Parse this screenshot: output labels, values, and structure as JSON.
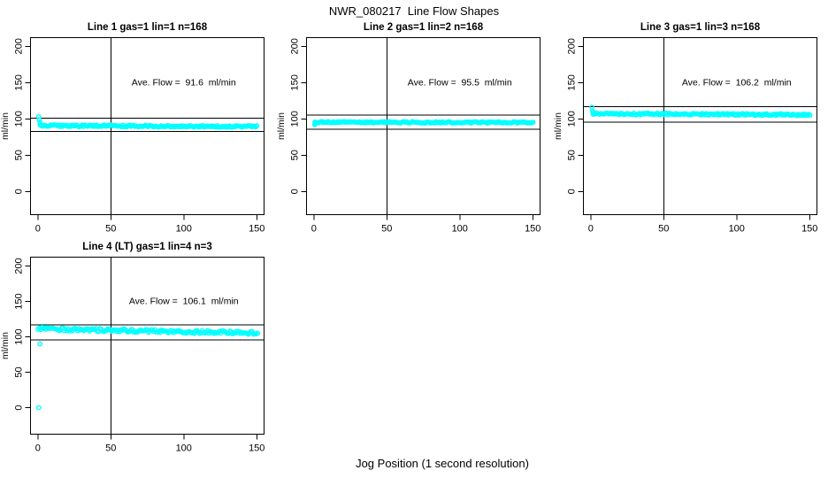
{
  "page": {
    "main_title": "NWR_080217  Line Flow Shapes",
    "x_axis_label": "Jog Position (1 second resolution)",
    "background_color": "#ffffff",
    "point_color": "#00ffff",
    "axis_color": "#000000"
  },
  "chart_data": [
    {
      "type": "scatter",
      "title": "Line 1 gas=1 lin=1 n=168",
      "annotation": "Ave. Flow =  91.6  ml/min",
      "ave_flow_ml_min": 91.6,
      "n_points": 168,
      "ylabel": "ml/min",
      "xticks": [
        0,
        50,
        100,
        150
      ],
      "yticks": [
        0,
        50,
        100,
        150,
        200
      ],
      "xlim": [
        -5,
        155
      ],
      "ylim": [
        -32,
        212
      ],
      "grid": false,
      "legend": null,
      "ref_vline_x": 50,
      "ref_hlines_y": [
        100.76,
        82.44
      ],
      "series": {
        "description": "dense flat band ~90 ml/min from x=2 to 151 after brief drop from ~103",
        "lead_points": [
          [
            0.6,
            103
          ],
          [
            1.0,
            99
          ],
          [
            1.4,
            95.5
          ]
        ],
        "band": {
          "x_start": 1.6,
          "x_end": 151,
          "y_start": 90.7,
          "y_end": 89.4,
          "noise": 1.2,
          "step": 0.9
        }
      }
    },
    {
      "type": "scatter",
      "title": "Line 2 gas=1 lin=2 n=168",
      "annotation": "Ave. Flow =  95.5  ml/min",
      "ave_flow_ml_min": 95.5,
      "n_points": 168,
      "ylabel": "ml/min",
      "xticks": [
        0,
        50,
        100,
        150
      ],
      "yticks": [
        0,
        50,
        100,
        150,
        200
      ],
      "xlim": [
        -5,
        155
      ],
      "ylim": [
        -32,
        212
      ],
      "grid": false,
      "legend": null,
      "ref_vline_x": 50,
      "ref_hlines_y": [
        105.05,
        85.95
      ],
      "series": {
        "description": "very flat dense band ~95 ml/min from x=1 to 151, slight low start",
        "lead_points": [
          [
            0.6,
            92.2
          ],
          [
            1.1,
            93.4
          ]
        ],
        "band": {
          "x_start": 0.8,
          "x_end": 151,
          "y_start": 95.4,
          "y_end": 95.0,
          "noise": 1.0,
          "step": 0.9
        }
      }
    },
    {
      "type": "scatter",
      "title": "Line 3 gas=1 lin=3 n=168",
      "annotation": "Ave. Flow =  106.2  ml/min",
      "ave_flow_ml_min": 106.2,
      "n_points": 168,
      "ylabel": "ml/min",
      "xticks": [
        0,
        50,
        100,
        150
      ],
      "yticks": [
        0,
        50,
        100,
        150,
        200
      ],
      "xlim": [
        -5,
        155
      ],
      "ylim": [
        -32,
        212
      ],
      "grid": false,
      "legend": null,
      "ref_vline_x": 50,
      "ref_hlines_y": [
        116.82,
        95.58
      ],
      "series": {
        "description": "dense band ~106 ml/min from x=2 to 151 after brief start near 116",
        "lead_points": [
          [
            0.8,
            116
          ],
          [
            1.3,
            111
          ],
          [
            1.8,
            109
          ]
        ],
        "band": {
          "x_start": 1.7,
          "x_end": 151,
          "y_start": 107.0,
          "y_end": 105.7,
          "noise": 1.2,
          "step": 0.9
        }
      }
    },
    {
      "type": "scatter",
      "title": "Line 4 (LT) gas=1 lin=4 n=3",
      "annotation": "Ave. Flow =  106.1  ml/min",
      "ave_flow_ml_min": 106.1,
      "n_points": 3,
      "ylabel": "ml/min",
      "xticks": [
        0,
        50,
        100,
        150
      ],
      "yticks": [
        0,
        50,
        100,
        150,
        200
      ],
      "xlim": [
        -5,
        155
      ],
      "ylim": [
        -37.5,
        212.5
      ],
      "grid": false,
      "legend": null,
      "ref_vline_x": 50,
      "ref_hlines_y": [
        116.71,
        95.49
      ],
      "series": {
        "description": "noisy band drifting ~111 down to ~105 ml/min across x=0..151; isolated outlier points at 0 and ~90 ml/min near x=1",
        "lead_points": [
          [
            0.6,
            0
          ],
          [
            1.4,
            90
          ]
        ],
        "band": {
          "x_start": 0.2,
          "x_end": 151,
          "y_start": 111.2,
          "y_end": 105.3,
          "noise": 2.2,
          "step": 0.9
        }
      }
    }
  ]
}
